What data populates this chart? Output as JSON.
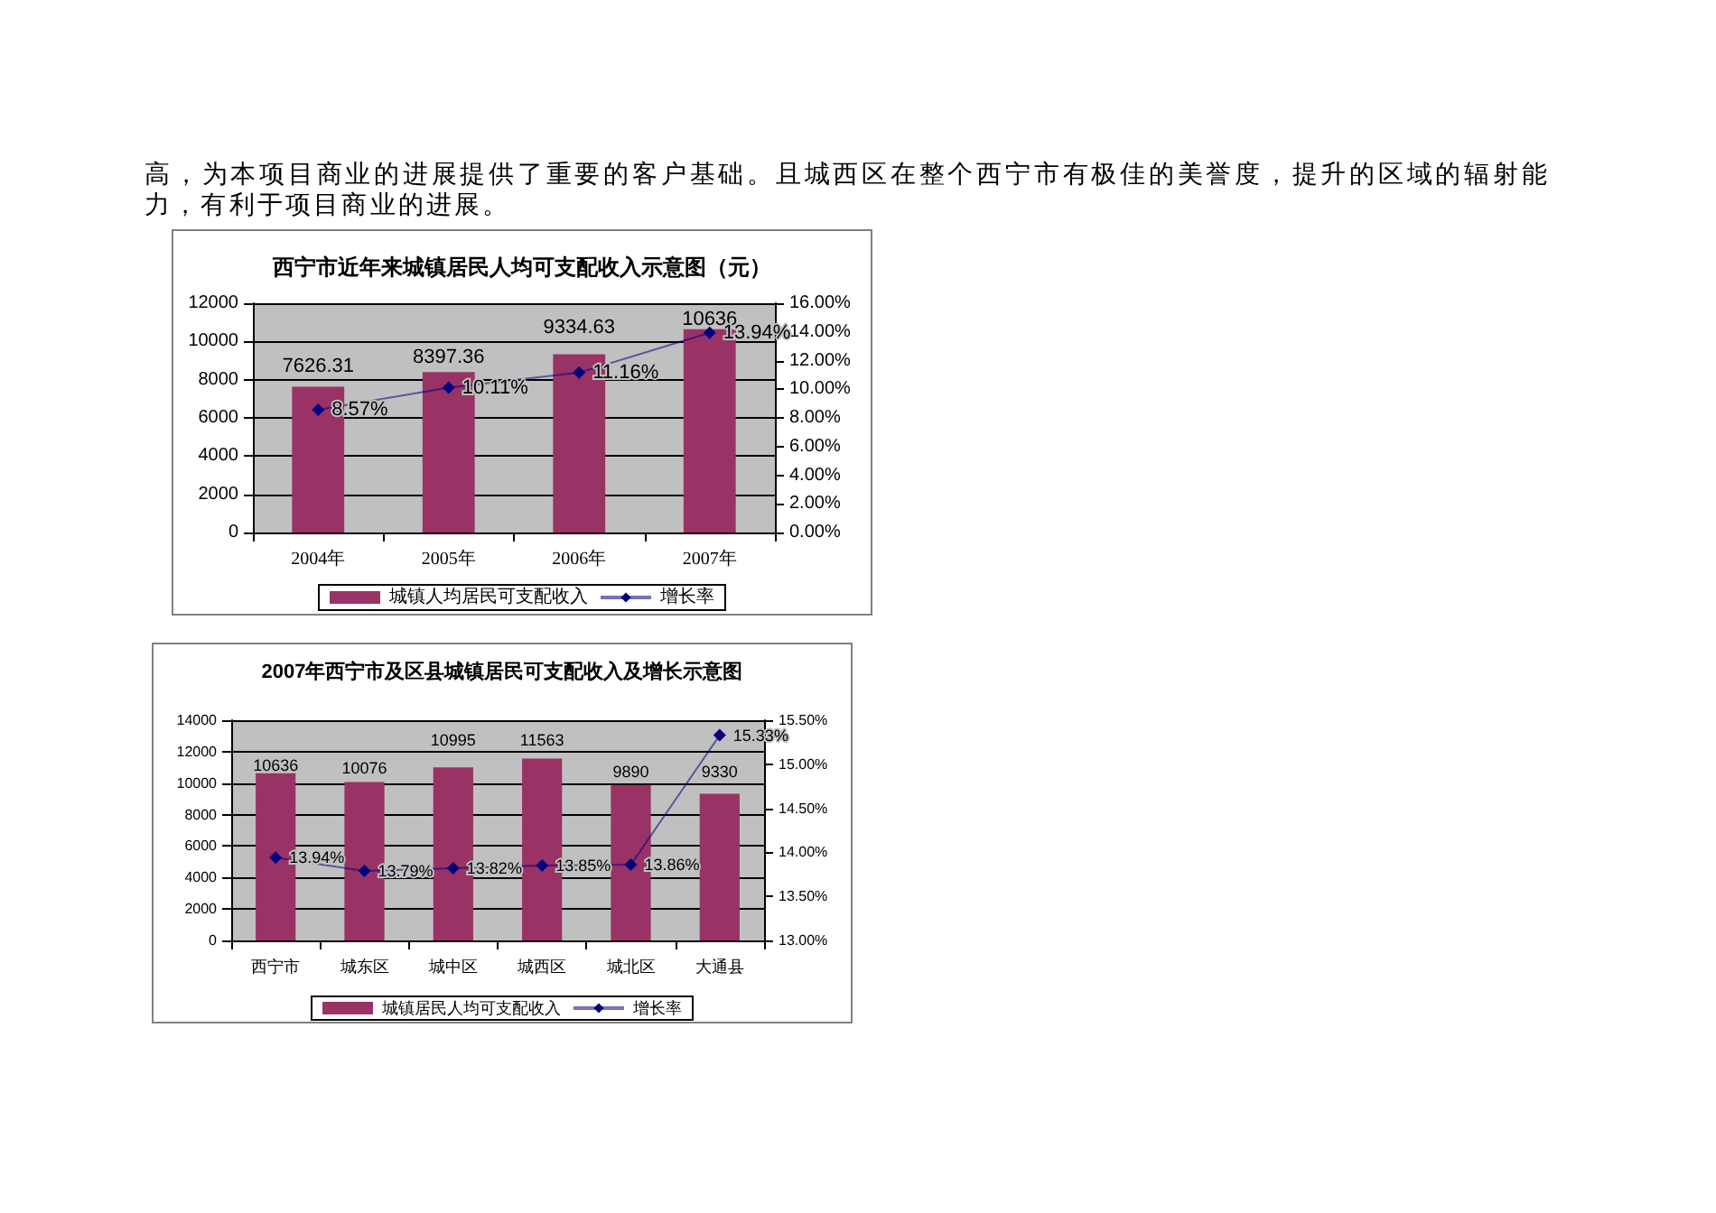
{
  "chart_data": [
    {
      "type": "bar",
      "title": "西宁市近年来城镇居民人均可支配收入示意图（元）",
      "annotations": [
        "高，为本项目商业的进展提供了重要的客户基础。且城西区在整个西宁市有极佳的美誉度，提升的区域的辐射能力，有利于项目商业的进展。"
      ],
      "categories": [
        "2004年",
        "2005年",
        "2006年",
        "2007年"
      ],
      "series": [
        {
          "name": "城镇人均居民可支配收入",
          "color": "#993366",
          "values": [
            7626.31,
            8397.36,
            9334.63,
            10636
          ],
          "value_labels": [
            "7626.31",
            "8397.36",
            "9334.63",
            "10636"
          ]
        },
        {
          "name": "增长率",
          "type": "line",
          "color": "#000080",
          "axis": "y2",
          "values": [
            8.57,
            10.11,
            11.16,
            13.94
          ],
          "value_labels": [
            "8.57%",
            "10.11%",
            "11.16%",
            "13.94%"
          ]
        }
      ],
      "ylim": [
        0,
        12000
      ],
      "yticks": [
        0,
        2000,
        4000,
        6000,
        8000,
        10000,
        12000
      ],
      "y2lim": [
        0,
        16
      ],
      "y2ticks": [
        {
          "value": 0,
          "label": "0.00%"
        },
        {
          "value": 2,
          "label": "2.00%"
        },
        {
          "value": 4,
          "label": "4.00%"
        },
        {
          "value": 6,
          "label": "6.00%"
        },
        {
          "value": 8,
          "label": "8.00%"
        },
        {
          "value": 10,
          "label": "10.00%"
        },
        {
          "value": 12,
          "label": "12.00%"
        },
        {
          "value": 14,
          "label": "14.00%"
        },
        {
          "value": 16,
          "label": "16.00%"
        }
      ],
      "grid": "y",
      "legend": "bottom",
      "marker": "diamond",
      "line_style": "solid"
    },
    {
      "type": "bar",
      "title": "2007年西宁市及区县城镇居民可支配收入及增长示意图",
      "categories": [
        "西宁市",
        "城东区",
        "城中区",
        "城西区",
        "城北区",
        "大通县"
      ],
      "series": [
        {
          "name": "城镇居民人均可支配收入",
          "color": "#993366",
          "values": [
            10636,
            10076,
            10995,
            11563,
            9890,
            9330
          ],
          "value_labels": [
            "10636",
            "10076",
            "10995",
            "11563",
            "9890",
            "9330"
          ]
        },
        {
          "name": "增长率",
          "type": "line",
          "color": "#000080",
          "axis": "y2",
          "values": [
            13.94,
            13.79,
            13.82,
            13.85,
            13.86,
            15.33
          ],
          "value_labels": [
            "13.94%",
            "13.79%",
            "13.82%",
            "13.85%",
            "13.86%",
            "15.33%"
          ]
        }
      ],
      "ylim": [
        0,
        14000
      ],
      "yticks": [
        0,
        2000,
        4000,
        6000,
        8000,
        10000,
        12000,
        14000
      ],
      "y2lim": [
        13,
        15.5
      ],
      "y2ticks": [
        {
          "value": 13,
          "label": "13.00%"
        },
        {
          "value": 13.5,
          "label": "13.50%"
        },
        {
          "value": 14,
          "label": "14.00%"
        },
        {
          "value": 14.5,
          "label": "14.50%"
        },
        {
          "value": 15,
          "label": "15.00%"
        },
        {
          "value": 15.5,
          "label": "15.50%"
        }
      ],
      "grid": "y",
      "legend": "bottom",
      "marker": "diamond",
      "line_style": "solid"
    }
  ]
}
